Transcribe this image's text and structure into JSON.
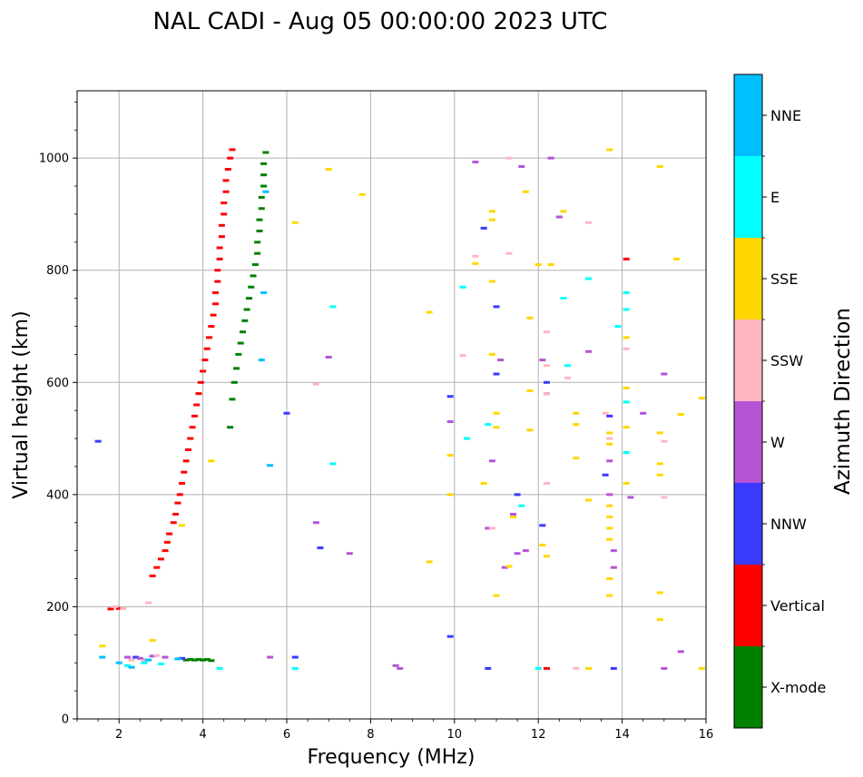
{
  "chart_data": {
    "type": "scatter",
    "title": "NAL CADI - Aug 05 00:00:00 2023 UTC",
    "xlabel": "Frequency (MHz)",
    "ylabel": "Virtual height (km)",
    "xlim": [
      1,
      16
    ],
    "ylim": [
      0,
      1120
    ],
    "xticks": [
      2,
      4,
      6,
      8,
      10,
      12,
      14,
      16
    ],
    "yticks": [
      0,
      200,
      400,
      600,
      800,
      1000
    ],
    "xtick_labels": [
      "2",
      "4",
      "6",
      "8",
      "10",
      "12",
      "14",
      "16"
    ],
    "ytick_labels": [
      "0",
      "200",
      "400",
      "600",
      "800",
      "1000"
    ],
    "grid": true,
    "colorbar": {
      "title": "Azimuth Direction",
      "categories": [
        "X-mode",
        "Vertical",
        "NNW",
        "W",
        "SSW",
        "SSE",
        "E",
        "NNE"
      ],
      "colors": [
        "#008000",
        "#ff0000",
        "#3a3aff",
        "#b553d5",
        "#ffb6c1",
        "#ffd700",
        "#00ffff",
        "#00bfff"
      ]
    },
    "series": [
      {
        "name": "Vertical",
        "color": "#ff0000",
        "points": [
          [
            2.8,
            255
          ],
          [
            2.9,
            270
          ],
          [
            3.0,
            285
          ],
          [
            3.1,
            300
          ],
          [
            3.15,
            315
          ],
          [
            3.2,
            330
          ],
          [
            3.3,
            350
          ],
          [
            3.35,
            365
          ],
          [
            3.4,
            385
          ],
          [
            3.45,
            400
          ],
          [
            3.5,
            420
          ],
          [
            3.55,
            440
          ],
          [
            3.6,
            460
          ],
          [
            3.65,
            480
          ],
          [
            3.7,
            500
          ],
          [
            3.75,
            520
          ],
          [
            3.8,
            540
          ],
          [
            3.85,
            560
          ],
          [
            3.9,
            580
          ],
          [
            3.95,
            600
          ],
          [
            4.0,
            620
          ],
          [
            4.05,
            640
          ],
          [
            4.1,
            660
          ],
          [
            4.15,
            680
          ],
          [
            4.2,
            700
          ],
          [
            4.25,
            720
          ],
          [
            4.3,
            740
          ],
          [
            4.3,
            760
          ],
          [
            4.35,
            780
          ],
          [
            4.35,
            800
          ],
          [
            4.4,
            820
          ],
          [
            4.4,
            840
          ],
          [
            4.45,
            860
          ],
          [
            4.45,
            880
          ],
          [
            4.5,
            900
          ],
          [
            4.5,
            920
          ],
          [
            4.55,
            940
          ],
          [
            4.55,
            960
          ],
          [
            4.6,
            980
          ],
          [
            4.65,
            1000
          ],
          [
            4.7,
            1015
          ],
          [
            1.8,
            196
          ],
          [
            2.0,
            197
          ],
          [
            12.2,
            90
          ],
          [
            14.1,
            820
          ]
        ]
      },
      {
        "name": "X-mode",
        "color": "#008000",
        "points": [
          [
            4.65,
            520
          ],
          [
            4.7,
            570
          ],
          [
            4.75,
            600
          ],
          [
            4.8,
            625
          ],
          [
            4.85,
            650
          ],
          [
            4.9,
            670
          ],
          [
            4.95,
            690
          ],
          [
            5.0,
            710
          ],
          [
            5.05,
            730
          ],
          [
            5.1,
            750
          ],
          [
            5.15,
            770
          ],
          [
            5.2,
            790
          ],
          [
            5.25,
            810
          ],
          [
            5.3,
            830
          ],
          [
            5.3,
            850
          ],
          [
            5.35,
            870
          ],
          [
            5.35,
            890
          ],
          [
            5.4,
            910
          ],
          [
            5.4,
            930
          ],
          [
            5.45,
            950
          ],
          [
            5.45,
            970
          ],
          [
            5.45,
            990
          ],
          [
            5.5,
            1010
          ],
          [
            3.6,
            105
          ],
          [
            3.7,
            106
          ],
          [
            3.8,
            105
          ],
          [
            3.9,
            106
          ],
          [
            4.0,
            105
          ],
          [
            4.1,
            106
          ],
          [
            4.2,
            104
          ]
        ]
      },
      {
        "name": "NNW",
        "color": "#3a3aff",
        "points": [
          [
            1.5,
            495
          ],
          [
            2.4,
            110
          ],
          [
            2.6,
            105
          ],
          [
            3.5,
            108
          ],
          [
            6.0,
            545
          ],
          [
            6.2,
            110
          ],
          [
            6.8,
            305
          ],
          [
            9.9,
            147
          ],
          [
            9.9,
            575
          ],
          [
            10.7,
            875
          ],
          [
            10.8,
            90
          ],
          [
            11.0,
            615
          ],
          [
            11.0,
            735
          ],
          [
            11.5,
            400
          ],
          [
            12.1,
            345
          ],
          [
            12.2,
            580
          ],
          [
            12.2,
            600
          ],
          [
            13.6,
            435
          ],
          [
            13.7,
            540
          ],
          [
            13.8,
            90
          ]
        ]
      },
      {
        "name": "W",
        "color": "#b553d5",
        "points": [
          [
            2.2,
            110
          ],
          [
            2.5,
            108
          ],
          [
            2.8,
            112
          ],
          [
            3.1,
            110
          ],
          [
            5.6,
            110
          ],
          [
            6.7,
            350
          ],
          [
            7.0,
            645
          ],
          [
            7.5,
            295
          ],
          [
            8.6,
            95
          ],
          [
            8.7,
            90
          ],
          [
            9.9,
            530
          ],
          [
            10.5,
            993
          ],
          [
            10.8,
            340
          ],
          [
            10.9,
            460
          ],
          [
            11.1,
            640
          ],
          [
            11.2,
            270
          ],
          [
            11.4,
            365
          ],
          [
            11.5,
            295
          ],
          [
            11.6,
            985
          ],
          [
            11.7,
            300
          ],
          [
            12.1,
            640
          ],
          [
            12.3,
            1000
          ],
          [
            12.5,
            895
          ],
          [
            13.2,
            655
          ],
          [
            13.7,
            400
          ],
          [
            13.7,
            460
          ],
          [
            13.8,
            300
          ],
          [
            13.8,
            270
          ],
          [
            14.2,
            395
          ],
          [
            14.5,
            545
          ],
          [
            15.0,
            615
          ],
          [
            15.0,
            90
          ],
          [
            15.4,
            120
          ]
        ]
      },
      {
        "name": "SSW",
        "color": "#ffb6c1",
        "points": [
          [
            1.9,
            200
          ],
          [
            2.1,
            197
          ],
          [
            2.3,
            105
          ],
          [
            2.6,
            104
          ],
          [
            2.7,
            207
          ],
          [
            2.9,
            113
          ],
          [
            6.7,
            597
          ],
          [
            10.2,
            648
          ],
          [
            10.5,
            825
          ],
          [
            10.9,
            340
          ],
          [
            11.3,
            1000
          ],
          [
            11.3,
            830
          ],
          [
            12.2,
            690
          ],
          [
            12.2,
            630
          ],
          [
            12.2,
            580
          ],
          [
            12.2,
            420
          ],
          [
            12.7,
            608
          ],
          [
            12.9,
            90
          ],
          [
            13.2,
            885
          ],
          [
            13.6,
            545
          ],
          [
            13.7,
            500
          ],
          [
            14.1,
            660
          ],
          [
            15.0,
            495
          ],
          [
            15.0,
            395
          ]
        ]
      },
      {
        "name": "SSE",
        "color": "#ffd700",
        "points": [
          [
            1.6,
            130
          ],
          [
            2.8,
            140
          ],
          [
            3.5,
            345
          ],
          [
            4.2,
            460
          ],
          [
            6.2,
            885
          ],
          [
            7.0,
            980
          ],
          [
            7.8,
            935
          ],
          [
            9.4,
            725
          ],
          [
            9.4,
            280
          ],
          [
            9.9,
            470
          ],
          [
            9.9,
            400
          ],
          [
            10.5,
            812
          ],
          [
            10.7,
            420
          ],
          [
            10.9,
            890
          ],
          [
            10.9,
            905
          ],
          [
            10.9,
            780
          ],
          [
            10.9,
            650
          ],
          [
            11.0,
            545
          ],
          [
            11.0,
            520
          ],
          [
            11.0,
            220
          ],
          [
            11.3,
            272
          ],
          [
            11.4,
            360
          ],
          [
            11.7,
            940
          ],
          [
            11.8,
            715
          ],
          [
            11.8,
            585
          ],
          [
            11.8,
            515
          ],
          [
            12.0,
            810
          ],
          [
            12.1,
            310
          ],
          [
            12.2,
            290
          ],
          [
            12.3,
            810
          ],
          [
            12.6,
            905
          ],
          [
            12.9,
            545
          ],
          [
            12.9,
            525
          ],
          [
            12.9,
            465
          ],
          [
            13.2,
            90
          ],
          [
            13.2,
            390
          ],
          [
            13.7,
            1015
          ],
          [
            13.7,
            510
          ],
          [
            13.7,
            490
          ],
          [
            13.7,
            380
          ],
          [
            13.7,
            360
          ],
          [
            13.7,
            340
          ],
          [
            13.7,
            320
          ],
          [
            13.7,
            250
          ],
          [
            13.7,
            220
          ],
          [
            14.1,
            680
          ],
          [
            14.1,
            590
          ],
          [
            14.1,
            520
          ],
          [
            14.1,
            420
          ],
          [
            14.9,
            985
          ],
          [
            14.9,
            510
          ],
          [
            14.9,
            455
          ],
          [
            14.9,
            435
          ],
          [
            14.9,
            225
          ],
          [
            14.9,
            177
          ],
          [
            15.3,
            820
          ],
          [
            15.4,
            543
          ],
          [
            15.9,
            572
          ],
          [
            15.9,
            90
          ]
        ]
      },
      {
        "name": "E",
        "color": "#00ffff",
        "points": [
          [
            2.2,
            95
          ],
          [
            2.6,
            100
          ],
          [
            3.0,
            98
          ],
          [
            4.4,
            90
          ],
          [
            6.2,
            90
          ],
          [
            7.1,
            735
          ],
          [
            7.1,
            455
          ],
          [
            10.2,
            770
          ],
          [
            10.3,
            500
          ],
          [
            10.8,
            525
          ],
          [
            11.6,
            380
          ],
          [
            12.6,
            750
          ],
          [
            12.7,
            630
          ],
          [
            13.2,
            785
          ],
          [
            13.9,
            700
          ],
          [
            14.1,
            760
          ],
          [
            14.1,
            730
          ],
          [
            14.1,
            565
          ],
          [
            14.1,
            475
          ],
          [
            12.0,
            90
          ]
        ]
      },
      {
        "name": "NNE",
        "color": "#00bfff",
        "points": [
          [
            1.6,
            110
          ],
          [
            2.0,
            100
          ],
          [
            2.3,
            92
          ],
          [
            2.7,
            105
          ],
          [
            3.4,
            107
          ],
          [
            5.4,
            640
          ],
          [
            5.45,
            760
          ],
          [
            5.5,
            940
          ],
          [
            5.6,
            452
          ]
        ]
      }
    ]
  }
}
